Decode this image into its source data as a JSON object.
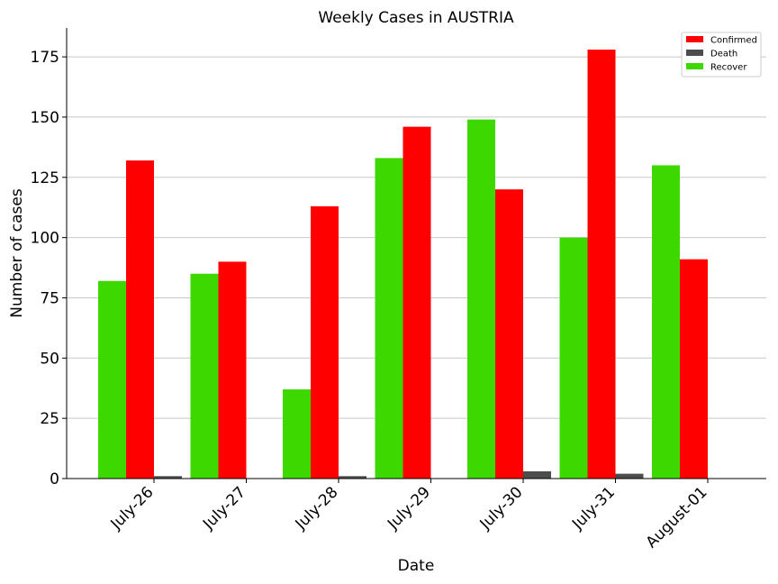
{
  "chart_data": {
    "type": "bar",
    "title": "Weekly Cases in AUSTRIA",
    "xlabel": "Date",
    "ylabel": "Number of cases",
    "categories": [
      "July-26",
      "July-27",
      "July-28",
      "July-29",
      "July-30",
      "July-31",
      "August-01"
    ],
    "ylim": [
      0,
      187
    ],
    "yticks": [
      0,
      25,
      50,
      75,
      100,
      125,
      150,
      175
    ],
    "grid": "horizontal",
    "legend_position": "top-right",
    "series": [
      {
        "name": "Recover",
        "color": "#3dd800",
        "values": [
          82,
          85,
          37,
          133,
          149,
          100,
          130
        ]
      },
      {
        "name": "Confirmed",
        "color": "#ff0000",
        "values": [
          132,
          90,
          113,
          146,
          120,
          178,
          91
        ]
      },
      {
        "name": "Death",
        "color": "#4d4d4d",
        "values": [
          1,
          0,
          1,
          0,
          3,
          2,
          0
        ]
      }
    ],
    "legend_order": [
      "Confirmed",
      "Death",
      "Recover"
    ]
  }
}
